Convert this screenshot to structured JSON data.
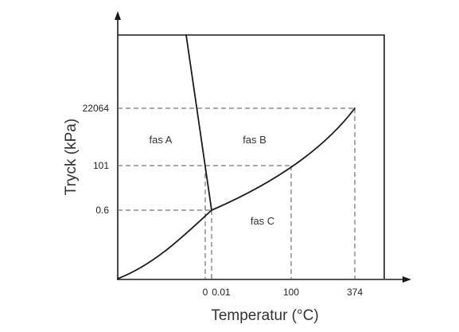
{
  "diagram": {
    "y_axis": {
      "title": "Tryck (kPa)",
      "ticks": [
        "22064",
        "101",
        "0.6"
      ]
    },
    "x_axis": {
      "title": "Temperatur (°C)",
      "ticks": [
        "0",
        "0.01",
        "100",
        "374"
      ]
    },
    "regions": {
      "a": "fas A",
      "b": "fas B",
      "c": "fas C"
    },
    "colors": {
      "line": "#1a1a1a",
      "dashed": "#555555",
      "text": "#333333"
    }
  }
}
